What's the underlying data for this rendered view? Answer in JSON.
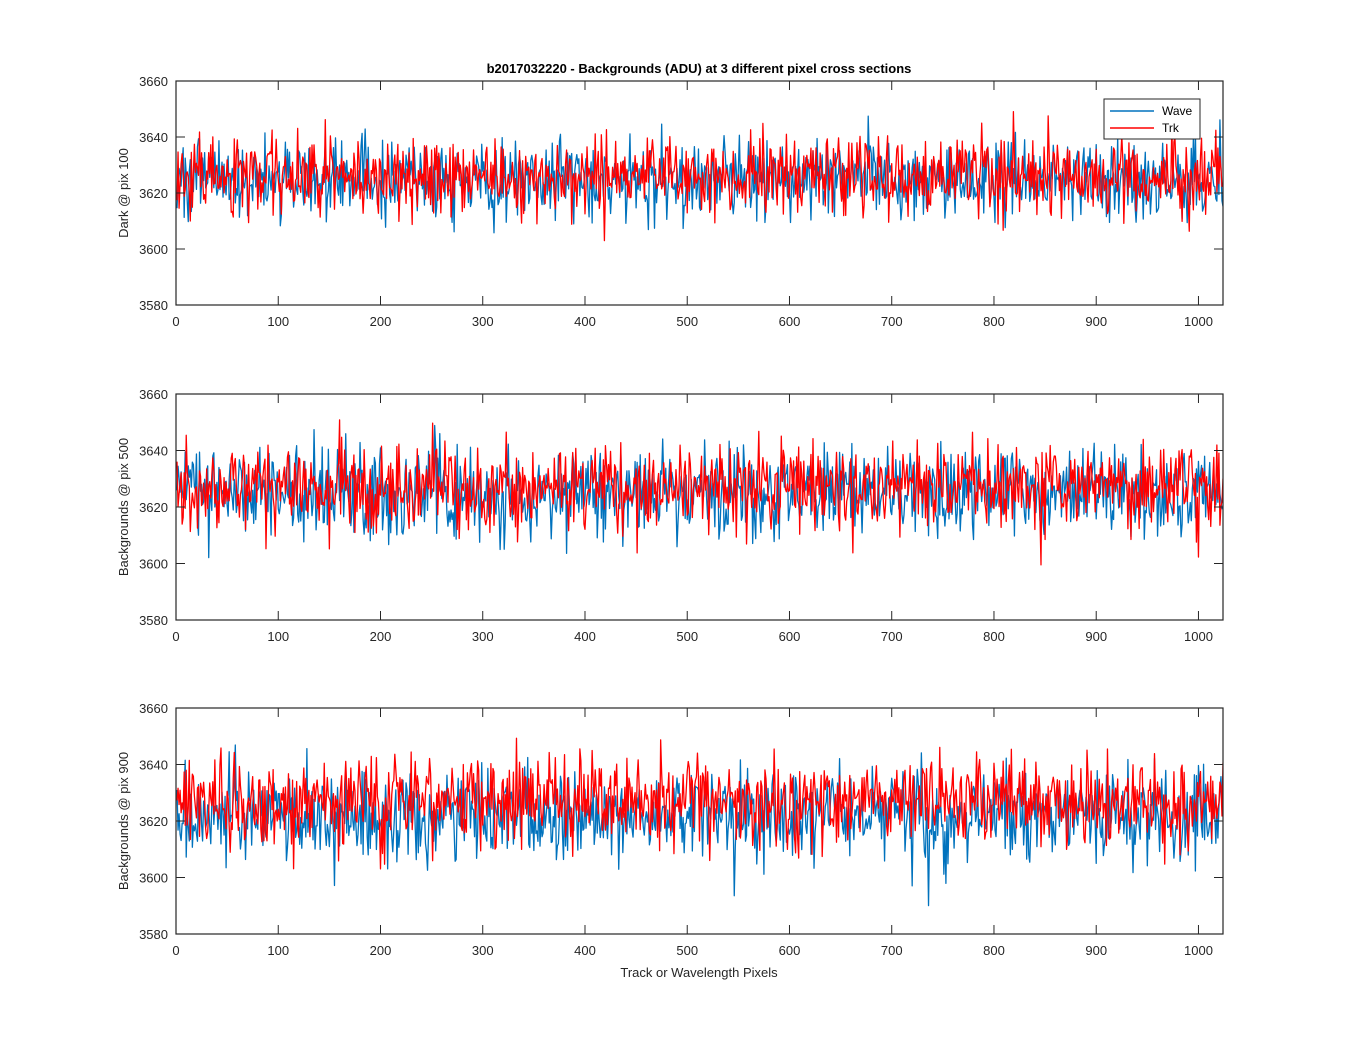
{
  "figure": {
    "title": "b2017032220 - Backgrounds (ADU) at 3 different pixel cross sections",
    "xlabel": "Track or Wavelength Pixels"
  },
  "colors": {
    "wave": "#0072BD",
    "trk": "#FF0000",
    "axes": "#262626"
  },
  "chart_data": [
    {
      "type": "line",
      "ylabel": "Dark @ pix 100",
      "xlim": [
        0,
        1024
      ],
      "ylim": [
        3580,
        3660
      ],
      "xticks": [
        0,
        100,
        200,
        300,
        400,
        500,
        600,
        700,
        800,
        900,
        1000
      ],
      "yticks": [
        3580,
        3600,
        3620,
        3640,
        3660
      ],
      "grid": false,
      "legend": {
        "position": "top-right",
        "entries": [
          "Wave",
          "Trk"
        ]
      },
      "series": [
        {
          "name": "Wave",
          "n_points": 1024,
          "mean": 3625,
          "std": 7.0,
          "min": 3602,
          "max": 3652,
          "seed": 101
        },
        {
          "name": "Trk",
          "n_points": 1024,
          "mean": 3626,
          "std": 7.0,
          "min": 3597,
          "max": 3650,
          "seed": 202
        }
      ]
    },
    {
      "type": "line",
      "ylabel": "Backgrounds @ pix 500",
      "xlim": [
        0,
        1024
      ],
      "ylim": [
        3580,
        3660
      ],
      "xticks": [
        0,
        100,
        200,
        300,
        400,
        500,
        600,
        700,
        800,
        900,
        1000
      ],
      "yticks": [
        3580,
        3600,
        3620,
        3640,
        3660
      ],
      "grid": false,
      "series": [
        {
          "name": "Wave",
          "n_points": 1024,
          "mean": 3625,
          "std": 8.0,
          "min": 3600,
          "max": 3654,
          "seed": 303
        },
        {
          "name": "Trk",
          "n_points": 1024,
          "mean": 3627,
          "std": 7.5,
          "min": 3594,
          "max": 3652,
          "seed": 404
        }
      ]
    },
    {
      "type": "line",
      "ylabel": "Backgrounds @ pix 900",
      "xlim": [
        0,
        1024
      ],
      "ylim": [
        3580,
        3660
      ],
      "xticks": [
        0,
        100,
        200,
        300,
        400,
        500,
        600,
        700,
        800,
        900,
        1000
      ],
      "yticks": [
        3580,
        3600,
        3620,
        3640,
        3660
      ],
      "grid": false,
      "series": [
        {
          "name": "Wave",
          "n_points": 1024,
          "mean": 3622,
          "std": 8.0,
          "min": 3590,
          "max": 3653,
          "seed": 505
        },
        {
          "name": "Trk",
          "n_points": 1024,
          "mean": 3627,
          "std": 7.5,
          "min": 3603,
          "max": 3658,
          "seed": 606
        }
      ]
    }
  ]
}
